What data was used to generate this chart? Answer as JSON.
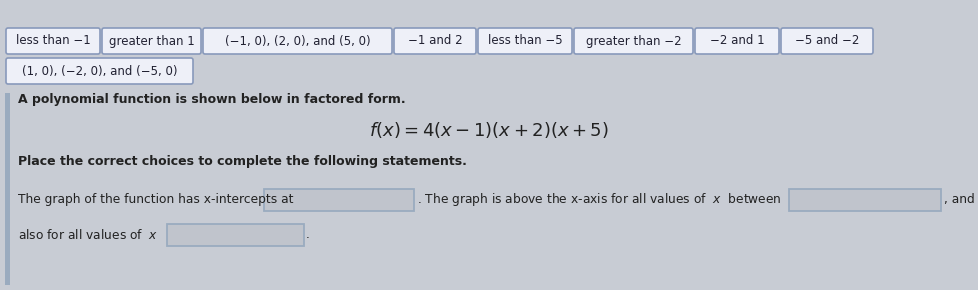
{
  "bg_color": "#c8ccd4",
  "chip_bg": "#eef0f8",
  "chip_edge": "#8899bb",
  "answer_box_bg": "#c0c4cc",
  "answer_box_edge": "#9aabbf",
  "left_bar_color": "#9aabbf",
  "chips_row1": [
    "less than −1",
    "greater than 1",
    "(−1, 0), (2, 0), and (5, 0)",
    "−1 and 2",
    "less than −5",
    "greater than −2",
    "−2 and 1",
    "−5 and −2"
  ],
  "chip2": "(1, 0), (−2, 0), and (−5, 0)",
  "instruction": "A polynomial function is shown below in factored form.",
  "formula": "$f(x) = 4(x-1)(x+2)(x+5)$",
  "direction": "Place the correct choices to complete the following statements.",
  "text_color": "#222222",
  "chip_text_color": "#222233"
}
